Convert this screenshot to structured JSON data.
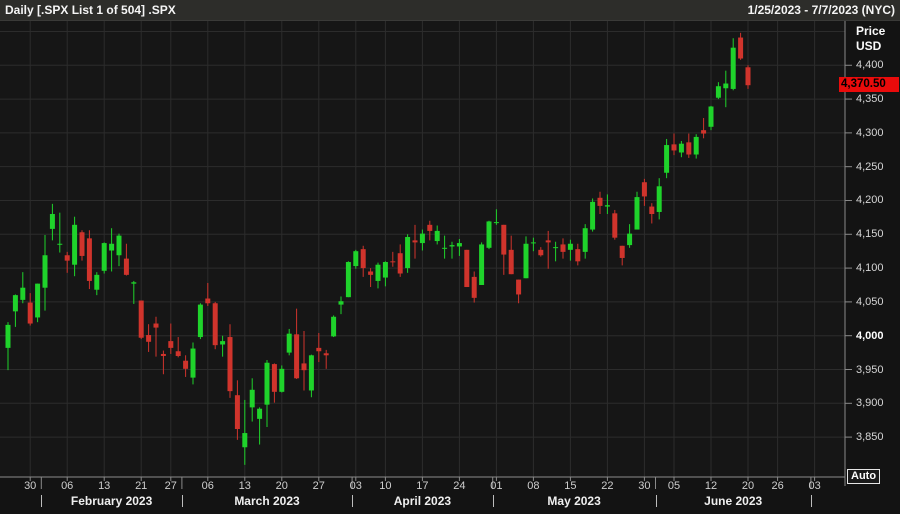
{
  "header": {
    "title": "Daily [.SPX List 1 of 504] .SPX",
    "date_range": "1/25/2023 - 7/7/2023 (NYC)"
  },
  "y_axis": {
    "title": "Price",
    "unit": "USD",
    "labels": [
      {
        "text": "4,400",
        "value": 4400,
        "bold": false
      },
      {
        "text": "4,350",
        "value": 4350,
        "bold": false
      },
      {
        "text": "4,300",
        "value": 4300,
        "bold": false
      },
      {
        "text": "4,250",
        "value": 4250,
        "bold": false
      },
      {
        "text": "4,200",
        "value": 4200,
        "bold": false
      },
      {
        "text": "4,150",
        "value": 4150,
        "bold": false
      },
      {
        "text": "4,100",
        "value": 4100,
        "bold": false
      },
      {
        "text": "4,050",
        "value": 4050,
        "bold": false
      },
      {
        "text": "4,000",
        "value": 4000,
        "bold": true
      },
      {
        "text": "3,950",
        "value": 3950,
        "bold": false
      },
      {
        "text": "3,900",
        "value": 3900,
        "bold": false
      },
      {
        "text": "3,850",
        "value": 3850,
        "bold": false
      }
    ],
    "last_price_label": "4,370.50",
    "last_price_value": 4370.5
  },
  "x_axis": {
    "day_ticks": [
      {
        "text": "30",
        "slot": 3
      },
      {
        "text": "06",
        "slot": 8
      },
      {
        "text": "13",
        "slot": 13
      },
      {
        "text": "21",
        "slot": 18
      },
      {
        "text": "27",
        "slot": 22
      },
      {
        "text": "06",
        "slot": 27
      },
      {
        "text": "13",
        "slot": 32
      },
      {
        "text": "20",
        "slot": 37
      },
      {
        "text": "27",
        "slot": 42
      },
      {
        "text": "03",
        "slot": 47
      },
      {
        "text": "10",
        "slot": 51
      },
      {
        "text": "17",
        "slot": 56
      },
      {
        "text": "24",
        "slot": 61
      },
      {
        "text": "01",
        "slot": 66
      },
      {
        "text": "08",
        "slot": 71
      },
      {
        "text": "15",
        "slot": 76
      },
      {
        "text": "22",
        "slot": 81
      },
      {
        "text": "30",
        "slot": 86
      },
      {
        "text": "05",
        "slot": 90
      },
      {
        "text": "12",
        "slot": 95
      },
      {
        "text": "20",
        "slot": 100
      },
      {
        "text": "26",
        "slot": 104
      },
      {
        "text": "03",
        "slot": 109
      }
    ],
    "months": [
      {
        "text": "February 2023",
        "start": 5,
        "end": 23
      },
      {
        "text": "March 2023",
        "start": 24,
        "end": 46
      },
      {
        "text": "April 2023",
        "start": 47,
        "end": 65
      },
      {
        "text": "May 2023",
        "start": 66,
        "end": 87
      },
      {
        "text": "June 2023",
        "start": 88,
        "end": 108
      }
    ],
    "trailing_boundary_slot": 108.5,
    "slot_count": 113
  },
  "controls": {
    "auto_label": "Auto"
  },
  "colors": {
    "up": "#1fd32b",
    "down": "#d0342c",
    "badge_bg": "#ea0b0b",
    "badge_text": "#000000",
    "grid": "#2c2c2c",
    "axis_line": "#8a8a8a"
  },
  "chart_data": {
    "type": "candlestick",
    "title": "Daily [.SPX List 1 of 504] .SPX",
    "symbol": ".SPX",
    "interval": "Daily",
    "currency": "USD",
    "x_range": [
      "2023-01-25",
      "2023-07-07"
    ],
    "y_axis_range": [
      3791,
      4464
    ],
    "y_gridlines": [
      3850,
      3900,
      3950,
      4000,
      4050,
      4100,
      4150,
      4200,
      4250,
      4300,
      4350,
      4400,
      4450
    ],
    "grid": true,
    "legend": false,
    "last_price": 4370.5,
    "candles": [
      [
        "2023-01-25",
        3982,
        4020,
        3949,
        4016
      ],
      [
        "2023-01-26",
        4036,
        4061,
        4013,
        4060
      ],
      [
        "2023-01-27",
        4053,
        4094,
        4048,
        4071
      ],
      [
        "2023-01-30",
        4049,
        4063,
        4015,
        4018
      ],
      [
        "2023-01-31",
        4027,
        4077,
        4020,
        4077
      ],
      [
        "2023-02-01",
        4071,
        4149,
        4037,
        4119
      ],
      [
        "2023-02-02",
        4158,
        4195,
        4141,
        4180
      ],
      [
        "2023-02-03",
        4136,
        4182,
        4123,
        4136
      ],
      [
        "2023-02-06",
        4119,
        4124,
        4093,
        4111
      ],
      [
        "2023-02-07",
        4105,
        4176,
        4088,
        4164
      ],
      [
        "2023-02-08",
        4153,
        4156,
        4111,
        4118
      ],
      [
        "2023-02-09",
        4144,
        4156,
        4069,
        4081
      ],
      [
        "2023-02-10",
        4068,
        4094,
        4060,
        4090
      ],
      [
        "2023-02-13",
        4096,
        4138,
        4092,
        4137
      ],
      [
        "2023-02-14",
        4126,
        4159,
        4095,
        4136
      ],
      [
        "2023-02-15",
        4119,
        4151,
        4103,
        4148
      ],
      [
        "2023-02-16",
        4114,
        4136,
        4089,
        4090
      ],
      [
        "2023-02-17",
        4077,
        4081,
        4047,
        4079
      ],
      [
        "2023-02-21",
        4052,
        4052,
        3995,
        3997
      ],
      [
        "2023-02-22",
        4001,
        4017,
        3976,
        3991
      ],
      [
        "2023-02-23",
        4018,
        4028,
        3969,
        4012
      ],
      [
        "2023-02-24",
        3973,
        3978,
        3943,
        3970
      ],
      [
        "2023-02-27",
        3992,
        4018,
        3973,
        3982
      ],
      [
        "2023-02-28",
        3977,
        3998,
        3968,
        3970
      ],
      [
        "2023-03-01",
        3963,
        3971,
        3939,
        3951
      ],
      [
        "2023-03-02",
        3938,
        3990,
        3928,
        3981
      ],
      [
        "2023-03-03",
        3998,
        4048,
        3995,
        4046
      ],
      [
        "2023-03-06",
        4055,
        4078,
        4044,
        4048
      ],
      [
        "2023-03-07",
        4048,
        4050,
        3980,
        3986
      ],
      [
        "2023-03-08",
        3987,
        4000,
        3969,
        3992
      ],
      [
        "2023-03-09",
        3998,
        4017,
        3908,
        3918
      ],
      [
        "2023-03-10",
        3912,
        3934,
        3846,
        3862
      ],
      [
        "2023-03-13",
        3835,
        3905,
        3809,
        3856
      ],
      [
        "2023-03-14",
        3894,
        3937,
        3873,
        3920
      ],
      [
        "2023-03-15",
        3877,
        3894,
        3839,
        3892
      ],
      [
        "2023-03-16",
        3898,
        3964,
        3865,
        3960
      ],
      [
        "2023-03-17",
        3958,
        3959,
        3901,
        3917
      ],
      [
        "2023-03-20",
        3917,
        3956,
        3916,
        3951
      ],
      [
        "2023-03-21",
        3975,
        4010,
        3971,
        4003
      ],
      [
        "2023-03-22",
        4002,
        4040,
        3936,
        3937
      ],
      [
        "2023-03-23",
        3959,
        4007,
        3919,
        3949
      ],
      [
        "2023-03-24",
        3919,
        3972,
        3909,
        3971
      ],
      [
        "2023-03-27",
        3982,
        4004,
        3961,
        3977
      ],
      [
        "2023-03-28",
        3974,
        3979,
        3951,
        3971
      ],
      [
        "2023-03-29",
        3999,
        4030,
        3998,
        4028
      ],
      [
        "2023-03-30",
        4046,
        4058,
        4032,
        4051
      ],
      [
        "2023-03-31",
        4057,
        4110,
        4057,
        4109
      ],
      [
        "2023-04-03",
        4103,
        4127,
        4099,
        4125
      ],
      [
        "2023-04-04",
        4128,
        4133,
        4087,
        4100
      ],
      [
        "2023-04-05",
        4095,
        4100,
        4072,
        4090
      ],
      [
        "2023-04-06",
        4081,
        4108,
        4070,
        4105
      ],
      [
        "2023-04-10",
        4086,
        4110,
        4073,
        4109
      ],
      [
        "2023-04-11",
        4110,
        4124,
        4102,
        4109
      ],
      [
        "2023-04-12",
        4122,
        4135,
        4087,
        4092
      ],
      [
        "2023-04-13",
        4100,
        4150,
        4093,
        4146
      ],
      [
        "2023-04-14",
        4141,
        4164,
        4114,
        4138
      ],
      [
        "2023-04-17",
        4137,
        4157,
        4126,
        4151
      ],
      [
        "2023-04-18",
        4164,
        4170,
        4141,
        4155
      ],
      [
        "2023-04-19",
        4140,
        4163,
        4135,
        4155
      ],
      [
        "2023-04-20",
        4130,
        4148,
        4114,
        4130
      ],
      [
        "2023-04-21",
        4132,
        4139,
        4114,
        4134
      ],
      [
        "2023-04-24",
        4132,
        4143,
        4118,
        4137
      ],
      [
        "2023-04-25",
        4127,
        4127,
        4072,
        4072
      ],
      [
        "2023-04-26",
        4087,
        4095,
        4049,
        4056
      ],
      [
        "2023-04-27",
        4075,
        4138,
        4075,
        4135
      ],
      [
        "2023-04-28",
        4130,
        4170,
        4128,
        4169
      ],
      [
        "2023-05-01",
        4167,
        4187,
        4164,
        4168
      ],
      [
        "2023-05-02",
        4164,
        4164,
        4090,
        4120
      ],
      [
        "2023-05-03",
        4127,
        4148,
        4091,
        4091
      ],
      [
        "2023-05-04",
        4083,
        4083,
        4048,
        4061
      ],
      [
        "2023-05-05",
        4085,
        4147,
        4085,
        4136
      ],
      [
        "2023-05-08",
        4137,
        4145,
        4125,
        4138
      ],
      [
        "2023-05-09",
        4127,
        4131,
        4117,
        4119
      ],
      [
        "2023-05-10",
        4141,
        4155,
        4099,
        4138
      ],
      [
        "2023-05-11",
        4131,
        4139,
        4110,
        4131
      ],
      [
        "2023-05-12",
        4135,
        4144,
        4114,
        4124
      ],
      [
        "2023-05-15",
        4127,
        4142,
        4111,
        4136
      ],
      [
        "2023-05-16",
        4128,
        4136,
        4104,
        4110
      ],
      [
        "2023-05-17",
        4124,
        4165,
        4114,
        4159
      ],
      [
        "2023-05-18",
        4157,
        4203,
        4154,
        4198
      ],
      [
        "2023-05-19",
        4204,
        4213,
        4180,
        4192
      ],
      [
        "2023-05-22",
        4191,
        4209,
        4180,
        4193
      ],
      [
        "2023-05-23",
        4181,
        4186,
        4142,
        4145
      ],
      [
        "2023-05-24",
        4133,
        4133,
        4104,
        4115
      ],
      [
        "2023-05-25",
        4134,
        4165,
        4130,
        4151
      ],
      [
        "2023-05-26",
        4157,
        4213,
        4157,
        4205
      ],
      [
        "2023-05-30",
        4227,
        4232,
        4192,
        4206
      ],
      [
        "2023-05-31",
        4191,
        4196,
        4166,
        4180
      ],
      [
        "2023-06-01",
        4183,
        4233,
        4172,
        4221
      ],
      [
        "2023-06-02",
        4241,
        4291,
        4233,
        4282
      ],
      [
        "2023-06-05",
        4283,
        4299,
        4267,
        4274
      ],
      [
        "2023-06-06",
        4271,
        4288,
        4264,
        4284
      ],
      [
        "2023-06-07",
        4286,
        4299,
        4263,
        4268
      ],
      [
        "2023-06-08",
        4268,
        4298,
        4262,
        4294
      ],
      [
        "2023-06-09",
        4304,
        4322,
        4292,
        4299
      ],
      [
        "2023-06-12",
        4309,
        4340,
        4304,
        4339
      ],
      [
        "2023-06-13",
        4352,
        4375,
        4350,
        4369
      ],
      [
        "2023-06-14",
        4366,
        4392,
        4338,
        4373
      ],
      [
        "2023-06-15",
        4365,
        4440,
        4363,
        4426
      ],
      [
        "2023-06-16",
        4441,
        4448,
        4408,
        4410
      ],
      [
        "2023-06-20",
        4397,
        4400,
        4365,
        4370.5
      ]
    ]
  }
}
